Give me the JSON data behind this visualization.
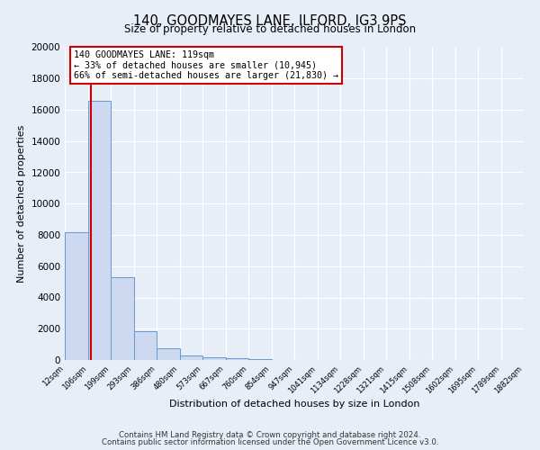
{
  "title": "140, GOODMAYES LANE, ILFORD, IG3 9PS",
  "subtitle": "Size of property relative to detached houses in London",
  "xlabel": "Distribution of detached houses by size in London",
  "ylabel": "Number of detached properties",
  "bar_color": "#ccd9f0",
  "bar_edge_color": "#6699cc",
  "bg_color": "#e8eef8",
  "grid_color": "#ffffff",
  "vline_color": "#cc0000",
  "annotation_line1": "140 GOODMAYES LANE: 119sqm",
  "annotation_line2": "← 33% of detached houses are smaller (10,945)",
  "annotation_line3": "66% of semi-detached houses are larger (21,830) →",
  "footer_line1": "Contains HM Land Registry data © Crown copyright and database right 2024.",
  "footer_line2": "Contains public sector information licensed under the Open Government Licence v3.0.",
  "bins": [
    12,
    106,
    199,
    293,
    386,
    480,
    573,
    667,
    760,
    854,
    947,
    1041,
    1134,
    1228,
    1321,
    1415,
    1508,
    1602,
    1695,
    1789,
    1882
  ],
  "counts": [
    8200,
    16600,
    5300,
    1850,
    750,
    300,
    175,
    100,
    65,
    0,
    0,
    0,
    0,
    0,
    0,
    0,
    0,
    0,
    0,
    0
  ],
  "tick_labels": [
    "12sqm",
    "106sqm",
    "199sqm",
    "293sqm",
    "386sqm",
    "480sqm",
    "573sqm",
    "667sqm",
    "760sqm",
    "854sqm",
    "947sqm",
    "1041sqm",
    "1134sqm",
    "1228sqm",
    "1321sqm",
    "1415sqm",
    "1508sqm",
    "1602sqm",
    "1695sqm",
    "1789sqm",
    "1882sqm"
  ],
  "ylim": [
    0,
    20000
  ],
  "yticks": [
    0,
    2000,
    4000,
    6000,
    8000,
    10000,
    12000,
    14000,
    16000,
    18000,
    20000
  ],
  "vline_x": 119,
  "figsize": [
    6.0,
    5.0
  ],
  "dpi": 100
}
